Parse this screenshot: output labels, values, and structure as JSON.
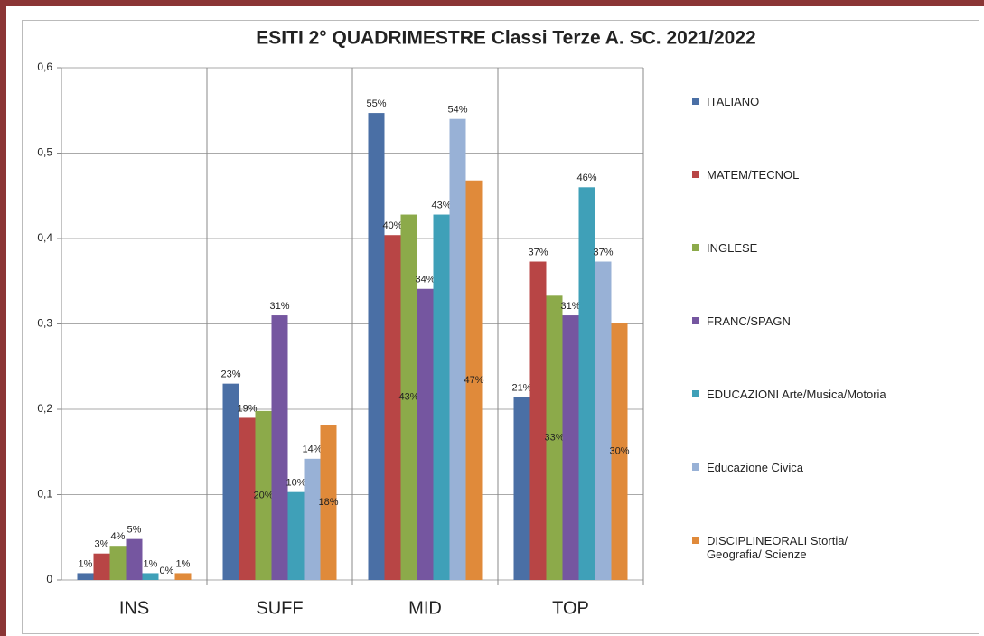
{
  "chart_data": {
    "type": "bar",
    "title": "ESITI 2° QUADRIMESTRE Classi Terze A. SC. 2021/2022",
    "categories": [
      "INS",
      "SUFF",
      "MID",
      "TOP"
    ],
    "series": [
      {
        "name": "ITALIANO",
        "color": "#4a6fa5",
        "values": [
          0.008,
          0.23,
          0.547,
          0.214
        ],
        "value_labels": [
          "1%",
          "23%",
          "55%",
          "21%"
        ]
      },
      {
        "name": "MATEM/TECNOL",
        "color": "#b84545",
        "values": [
          0.031,
          0.19,
          0.404,
          0.373
        ],
        "value_labels": [
          "3%",
          "19%",
          "40%",
          "37%"
        ]
      },
      {
        "name": "INGLESE",
        "color": "#8caa4a",
        "values": [
          0.04,
          0.198,
          0.428,
          0.333
        ],
        "value_labels": [
          "4%",
          "20%",
          "43%",
          "33%"
        ]
      },
      {
        "name": "FRANC/SPAGN",
        "color": "#7556a0",
        "values": [
          0.048,
          0.31,
          0.341,
          0.31
        ],
        "value_labels": [
          "5%",
          "31%",
          "34%",
          "31%"
        ]
      },
      {
        "name": "EDUCAZIONI Arte/Musica/Motoria",
        "color": "#3fa0b8",
        "values": [
          0.008,
          0.103,
          0.428,
          0.46
        ],
        "value_labels": [
          "1%",
          "10%",
          "43%",
          "46%"
        ]
      },
      {
        "name": "Educazione Civica",
        "color": "#98b1d6",
        "values": [
          0,
          0.142,
          0.54,
          0.373
        ],
        "value_labels": [
          "0%",
          "14%",
          "54%",
          "37%"
        ]
      },
      {
        "name": "DISCIPLINEORALI Stortia/ Geografia/ Scienze",
        "color": "#e08a3a",
        "values": [
          0.008,
          0.182,
          0.468,
          0.301
        ],
        "value_labels": [
          "1%",
          "18%",
          "47%",
          "30%"
        ]
      }
    ],
    "ylim": [
      0,
      0.6
    ],
    "yticks": [
      0,
      {
        "value": 0.1,
        "label": "0,1"
      },
      {
        "value": 0.2,
        "label": "0,2"
      },
      {
        "value": 0.3,
        "label": "0,3"
      },
      {
        "value": 0.4,
        "label": "0,4"
      },
      {
        "value": 0.5,
        "label": "0,5"
      },
      {
        "value": 0.6,
        "label": "0,6"
      }
    ],
    "grid": true,
    "legend": "right"
  }
}
